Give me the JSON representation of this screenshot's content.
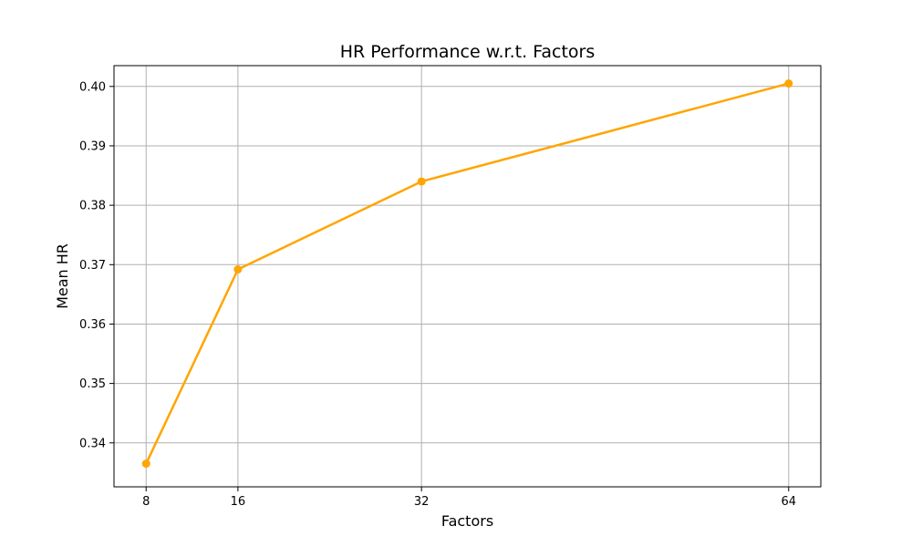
{
  "chart_data": {
    "type": "line",
    "title": "HR Performance w.r.t. Factors",
    "xlabel": "Factors",
    "ylabel": "Mean HR",
    "x": [
      8,
      16,
      32,
      64
    ],
    "x_tick_labels": [
      "8",
      "16",
      "32",
      "64"
    ],
    "series": [
      {
        "values": [
          0.3365,
          0.3692,
          0.384,
          0.4005
        ],
        "color": "#ffa500",
        "marker": "circle"
      }
    ],
    "xlim": [
      5.2,
      66.8
    ],
    "ylim": [
      0.3326,
      0.4035
    ],
    "yticks": [
      0.34,
      0.35,
      0.36,
      0.37,
      0.38,
      0.39,
      0.4
    ],
    "y_tick_labels": [
      "0.34",
      "0.35",
      "0.36",
      "0.37",
      "0.38",
      "0.39",
      "0.40"
    ],
    "grid": true,
    "grid_color": "#b0b0b0",
    "legend": false
  }
}
